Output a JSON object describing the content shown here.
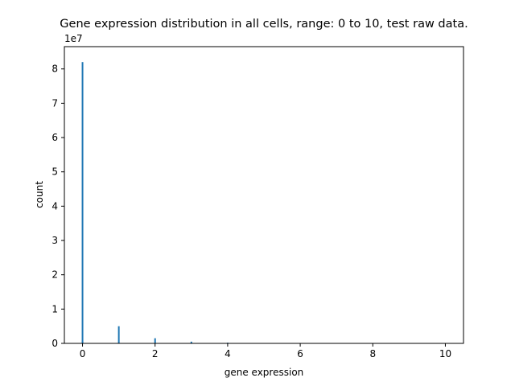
{
  "chart_data": {
    "type": "bar",
    "title": "Gene expression distribution in all cells, range: 0 to 10, test raw data.",
    "xlabel": "gene expression",
    "ylabel": "count",
    "y_offset_label": "1e7",
    "xlim": [
      -0.5,
      10.5
    ],
    "ylim": [
      0,
      86500000
    ],
    "x_ticks": [
      0,
      2,
      4,
      6,
      8,
      10
    ],
    "x_tick_labels": [
      "0",
      "2",
      "4",
      "6",
      "8",
      "10"
    ],
    "y_ticks": [
      0,
      10000000,
      20000000,
      30000000,
      40000000,
      50000000,
      60000000,
      70000000,
      80000000
    ],
    "y_tick_labels": [
      "0",
      "1",
      "2",
      "3",
      "4",
      "5",
      "6",
      "7",
      "8"
    ],
    "bar_color": "#1f77b4",
    "grid": false,
    "x": [
      0,
      1,
      2,
      3,
      4,
      5,
      6,
      7,
      8,
      9,
      10
    ],
    "values": [
      82000000,
      5000000,
      1500000,
      500000,
      200000,
      100000,
      50000,
      30000,
      20000,
      10000,
      5000
    ]
  }
}
